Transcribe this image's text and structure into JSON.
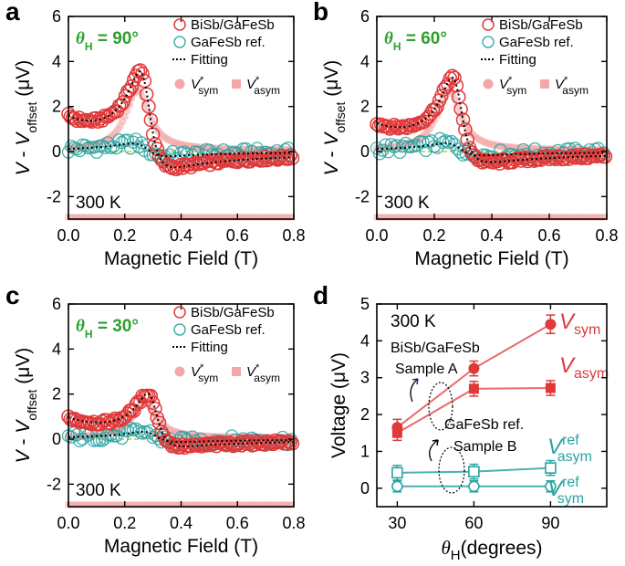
{
  "colors": {
    "red": "#e0393a",
    "pink": "#f4a7a7",
    "teal": "#2aa3a3",
    "tealLight": "#8ccfd0",
    "green": "#2ca02c",
    "olive": "#c5c53a",
    "line_red": "#e86b6b",
    "line_teal": "#4db0b0"
  },
  "chart_data": [
    {
      "type": "scatter",
      "panel": "a",
      "theta_prefix": "θ",
      "theta_sub": "H",
      "theta_value": " = 90°",
      "temperature": "300 K",
      "xlabel": "Magnetic Field (T)",
      "ylabel": {
        "v": "V",
        "sep": " - ",
        "v2": "V",
        "sub": "offset",
        "unit": " (μV)"
      },
      "xlim": [
        0.0,
        0.8
      ],
      "ylim": [
        -3,
        6
      ],
      "xticks": [
        "0.0",
        "0.2",
        "0.4",
        "0.6",
        "0.8"
      ],
      "yticks": [
        "-2",
        "0",
        "2",
        "4",
        "6"
      ],
      "legend": [
        {
          "label": "BiSb/GaFeSb",
          "marker": "open-circle-red"
        },
        {
          "label": "GaFeSb ref.",
          "marker": "open-circle-teal"
        },
        {
          "label": "Fitting",
          "marker": "dotted-line"
        },
        {
          "label_v": "V",
          "sup": "*",
          "sub": "sym",
          "marker": "filled-circle-pink"
        },
        {
          "label_v": "V",
          "sup": "*",
          "sub": "asym",
          "marker": "filled-square-pink"
        }
      ],
      "series_params": {
        "vsym": 2.7,
        "vasym": 2.9,
        "h0": 0.275,
        "w": 0.046,
        "offset_left": 1.0,
        "ref_sym": 0.15,
        "ref_asym": 0.55
      }
    },
    {
      "type": "scatter",
      "panel": "b",
      "theta_prefix": "θ",
      "theta_sub": "H",
      "theta_value": " = 60°",
      "temperature": "300 K",
      "xlabel": "Magnetic Field (T)",
      "ylabel": {
        "v": "V",
        "sep": " - ",
        "v2": "V",
        "sub": "offset",
        "unit": " (μV)"
      },
      "xlim": [
        0.0,
        0.8
      ],
      "ylim": [
        -3,
        6
      ],
      "xticks": [
        "0.0",
        "0.2",
        "0.4",
        "0.6",
        "0.8"
      ],
      "yticks": [
        "-2",
        "0",
        "2",
        "4",
        "6"
      ],
      "legend": [
        {
          "label": "BiSb/GaFeSb",
          "marker": "open-circle-red"
        },
        {
          "label": "GaFeSb ref.",
          "marker": "open-circle-teal"
        },
        {
          "label": "Fitting",
          "marker": "dotted-line"
        },
        {
          "label_v": "V",
          "sup": "*",
          "sub": "sym",
          "marker": "filled-circle-pink"
        },
        {
          "label_v": "V",
          "sup": "*",
          "sub": "asym",
          "marker": "filled-square-pink"
        }
      ],
      "series_params": {
        "vsym": 2.7,
        "vasym": 2.3,
        "h0": 0.28,
        "w": 0.045,
        "offset_left": 0.8,
        "ref_sym": 0.2,
        "ref_asym": 0.5
      }
    },
    {
      "type": "scatter",
      "panel": "c",
      "theta_prefix": "θ",
      "theta_sub": "H",
      "theta_value": " = 30°",
      "temperature": "300 K",
      "xlabel": "Magnetic Field (T)",
      "ylabel": {
        "v": "V",
        "sep": " - ",
        "v2": "V",
        "sub": "offset",
        "unit": " (μV)"
      },
      "xlim": [
        0.0,
        0.8
      ],
      "ylim": [
        -3,
        6
      ],
      "xticks": [
        "0.0",
        "0.2",
        "0.4",
        "0.6",
        "0.8"
      ],
      "yticks": [
        "-2",
        "0",
        "2",
        "4",
        "6"
      ],
      "legend": [
        {
          "label": "BiSb/GaFeSb",
          "marker": "open-circle-red"
        },
        {
          "label": "GaFeSb ref.",
          "marker": "open-circle-teal"
        },
        {
          "label": "Fitting",
          "marker": "dotted-line"
        },
        {
          "label_v": "V",
          "sup": "*",
          "sub": "sym",
          "marker": "filled-circle-pink"
        },
        {
          "label_v": "V",
          "sup": "*",
          "sub": "asym",
          "marker": "filled-square-pink"
        }
      ],
      "series_params": {
        "vsym": 1.6,
        "vasym": 1.5,
        "h0": 0.3,
        "w": 0.045,
        "offset_left": 0.7,
        "ref_sym": 0.2,
        "ref_asym": 0.4
      }
    },
    {
      "type": "line",
      "panel": "d",
      "temperature": "300 K",
      "xlabel_theta": "θ",
      "xlabel_sub": "H",
      "xlabel_rest": "(degrees)",
      "ylabel": "Voltage (μV)",
      "xlim": [
        22,
        112
      ],
      "ylim": [
        -0.5,
        5
      ],
      "xticks": [
        "30",
        "60",
        "90"
      ],
      "yticks": [
        "0",
        "1",
        "2",
        "3",
        "4",
        "5"
      ],
      "x": [
        30,
        60,
        90
      ],
      "series": [
        {
          "name": "Vsym",
          "label_v": "V",
          "label_sub": "sym",
          "values": [
            1.65,
            3.25,
            4.45
          ],
          "errors": [
            0.22,
            0.2,
            0.25
          ],
          "marker": "filled-circle",
          "color": "red"
        },
        {
          "name": "Vasym",
          "label_v": "V",
          "label_sub": "asym",
          "values": [
            1.5,
            2.7,
            2.72
          ],
          "errors": [
            0.2,
            0.2,
            0.2
          ],
          "marker": "filled-square",
          "color": "red"
        },
        {
          "name": "Vref_asym",
          "label_v": "V",
          "label_sup": "ref",
          "label_sub": "asym",
          "values": [
            0.42,
            0.45,
            0.55
          ],
          "errors": [
            0.2,
            0.2,
            0.2
          ],
          "marker": "open-square",
          "color": "teal"
        },
        {
          "name": "Vref_sym",
          "label_v": "V",
          "label_sup": "ref",
          "label_sub": "sym",
          "values": [
            0.05,
            0.05,
            0.05
          ],
          "errors": [
            0.15,
            0.15,
            0.15
          ],
          "marker": "open-circle",
          "color": "teal"
        }
      ],
      "annotations": {
        "sample1_material": "BiSb/GaFeSb",
        "sample1_name": "Sample A",
        "sample2_material": "GaFeSb ref.",
        "sample2_name": "Sample B"
      }
    }
  ]
}
